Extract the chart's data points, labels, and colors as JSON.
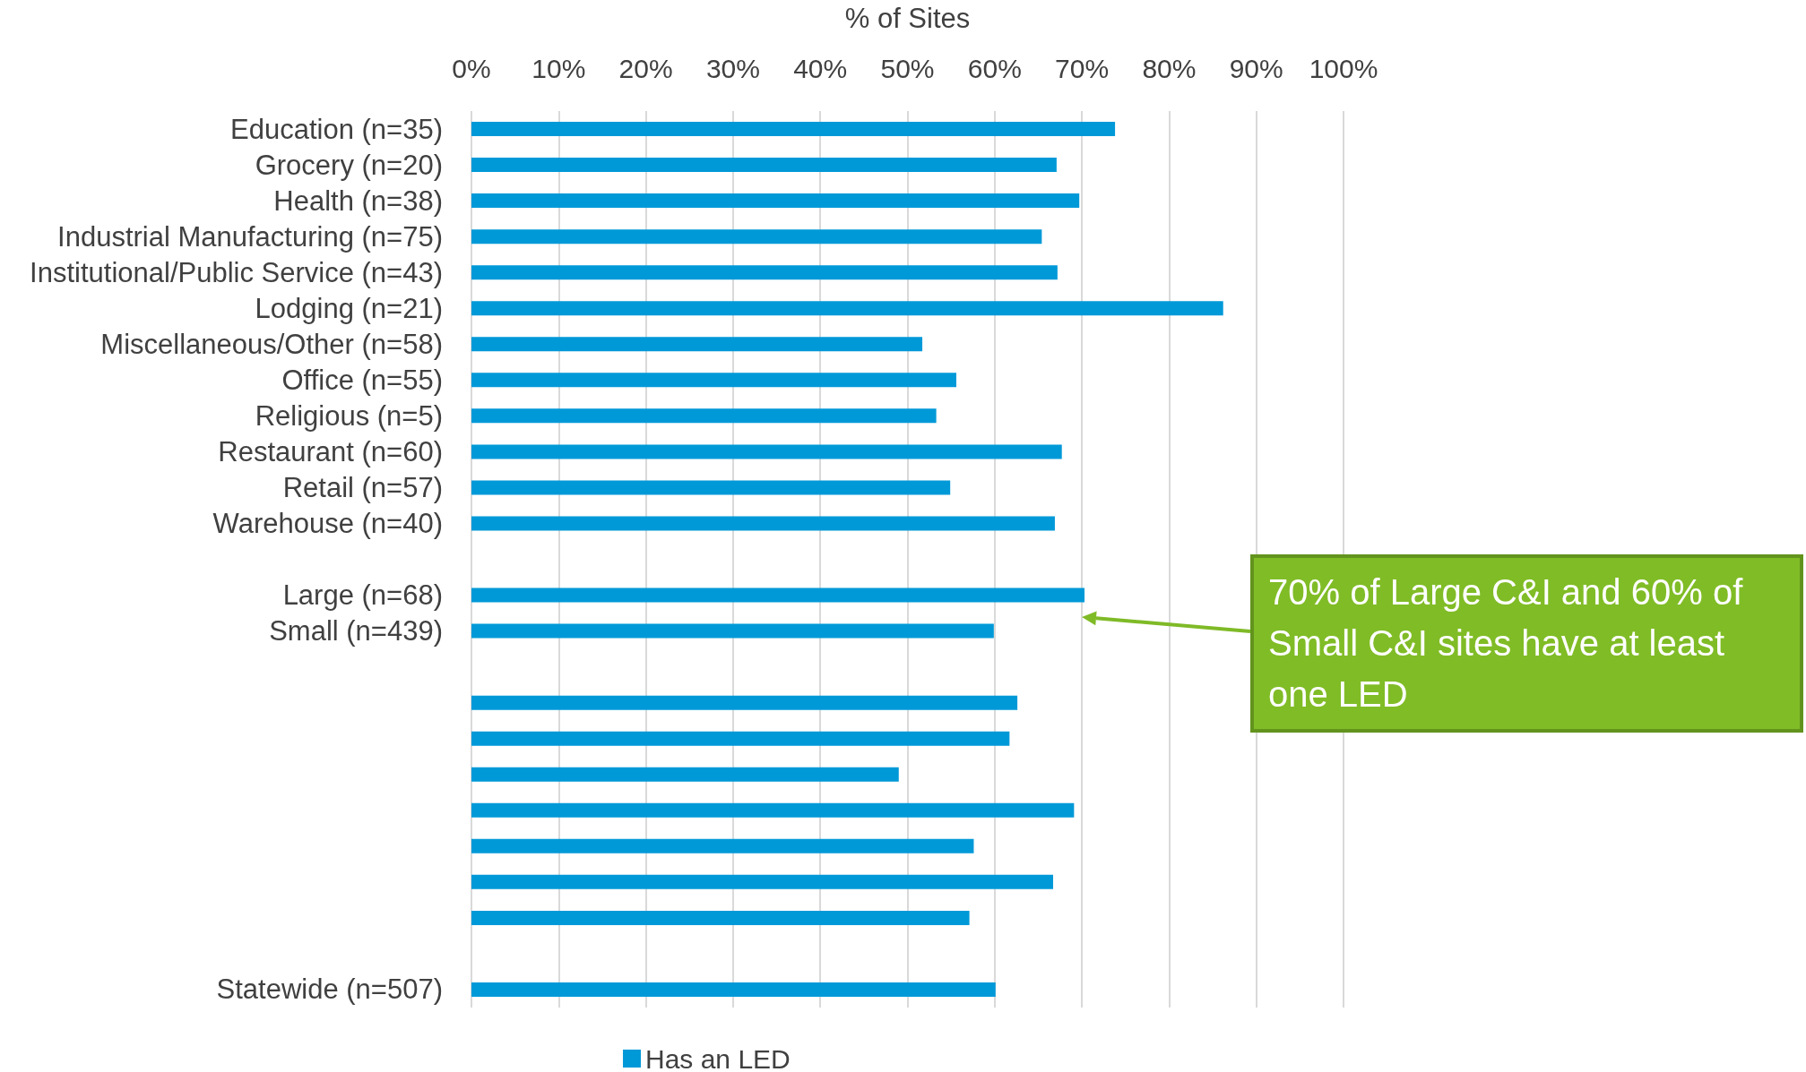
{
  "chart_data": {
    "type": "bar",
    "orientation": "horizontal",
    "xlabel": "% of Sites",
    "categories": [
      "Education (n=35)",
      "Grocery (n=20)",
      "Health (n=38)",
      "Industrial Manufacturing (n=75)",
      "Institutional/Public Service (n=43)",
      "Lodging (n=21)",
      "Miscellaneous/Other (n=58)",
      "Office (n=55)",
      "Religious (n=5)",
      "Restaurant (n=60)",
      "Retail (n=57)",
      "Warehouse (n=40)",
      null,
      "Large (n=68)",
      "Small (n=439)",
      null,
      null,
      null,
      null,
      null,
      null,
      null,
      null,
      null,
      "Statewide (n=507)"
    ],
    "series": [
      {
        "name": "Has an LED",
        "color": "#0099d8",
        "values": [
          73.8,
          67.1,
          69.7,
          65.4,
          67.2,
          86.2,
          51.7,
          55.6,
          53.3,
          67.7,
          54.9,
          66.9,
          null,
          70.3,
          59.9,
          null,
          62.6,
          61.7,
          49.0,
          69.1,
          57.6,
          66.7,
          57.1,
          null,
          60.1
        ]
      }
    ],
    "xlim": [
      0,
      100
    ],
    "xticks": [
      {
        "value": 0,
        "label": "0%"
      },
      {
        "value": 10,
        "label": "10%"
      },
      {
        "value": 20,
        "label": "20%"
      },
      {
        "value": 30,
        "label": "30%"
      },
      {
        "value": 40,
        "label": "40%"
      },
      {
        "value": 50,
        "label": "50%"
      },
      {
        "value": 60,
        "label": "60%"
      },
      {
        "value": 70,
        "label": "70%"
      },
      {
        "value": 80,
        "label": "80%"
      },
      {
        "value": 90,
        "label": "90%"
      },
      {
        "value": 100,
        "label": "100%"
      }
    ],
    "grid": "x",
    "legend": "bottom",
    "annotations": [
      "70% of Large C&I and 60% of Small C&I sites have at least one LED"
    ]
  }
}
